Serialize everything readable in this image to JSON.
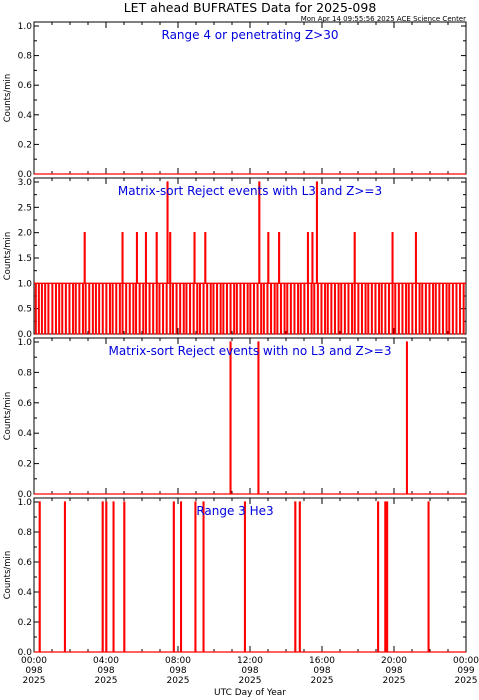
{
  "title": "LET ahead BUFRATES Data for 2025-098",
  "timestamp": "Mon Apr 14 09:55:56 2025 ACE Science Center",
  "xlabel": "UTC Day of Year",
  "colors": {
    "data": "#ff0000",
    "annotation": "#0000dd",
    "axes": "#000000"
  },
  "x_ticks": [
    {
      "time": "00:00",
      "day": "098",
      "year": "2025"
    },
    {
      "time": "04:00",
      "day": "098",
      "year": "2025"
    },
    {
      "time": "08:00",
      "day": "098",
      "year": "2025"
    },
    {
      "time": "12:00",
      "day": "098",
      "year": "2025"
    },
    {
      "time": "16:00",
      "day": "098",
      "year": "2025"
    },
    {
      "time": "20:00",
      "day": "098",
      "year": "2025"
    },
    {
      "time": "00:00",
      "day": "099",
      "year": "2025"
    }
  ],
  "chart_data": [
    {
      "type": "line",
      "annotation": "Range 4 or  penetrating Z>30",
      "ylabel": "Counts/min",
      "xlim": [
        0,
        24
      ],
      "ylim": [
        0,
        1
      ],
      "yticks": [
        "0.0",
        "0.2",
        "0.4",
        "0.6",
        "0.8",
        "1.0"
      ],
      "baseline": 0,
      "spikes": []
    },
    {
      "type": "line",
      "annotation": "Matrix-sort Reject events with L3 and Z>=3",
      "ylabel": "Counts/min",
      "xlim": [
        0,
        24
      ],
      "ylim": [
        0,
        3
      ],
      "yticks": [
        "0.0",
        "0.5",
        "1.0",
        "1.5",
        "2.0",
        "2.5",
        "3.0"
      ],
      "baseline": 1,
      "zero_dips": [
        0.08,
        0.25,
        0.42,
        0.6,
        0.78,
        1.0,
        1.2,
        1.38,
        1.55,
        1.75,
        1.95,
        2.15,
        2.3,
        2.5,
        2.7,
        2.85,
        3.05,
        3.25,
        3.42,
        3.6,
        3.8,
        4.0,
        4.2,
        4.35,
        4.55,
        4.75,
        4.9,
        5.1,
        5.3,
        5.5,
        5.65,
        5.85,
        6.05,
        6.2,
        6.4,
        6.6,
        6.8,
        6.95,
        7.15,
        7.35,
        7.55,
        7.7,
        7.9,
        8.1,
        8.3,
        8.45,
        8.65,
        8.85,
        9.05,
        9.2,
        9.4,
        9.6,
        9.8,
        9.95,
        10.15,
        10.35,
        10.5,
        10.7,
        10.9,
        11.1,
        11.25,
        11.45,
        11.65,
        11.85,
        12.0,
        12.2,
        12.4,
        12.6,
        12.75,
        12.95,
        13.15,
        13.35,
        13.5,
        13.7,
        13.9,
        14.05,
        14.25,
        14.45,
        14.65,
        14.8,
        15.0,
        15.2,
        15.4,
        15.55,
        15.75,
        15.95,
        16.15,
        16.3,
        16.5,
        16.7,
        16.9,
        17.05,
        17.25,
        17.45,
        17.65,
        17.8,
        18.0,
        18.2,
        18.4,
        18.55,
        18.75,
        18.95,
        19.15,
        19.3,
        19.5,
        19.7,
        19.9,
        20.05,
        20.25,
        20.45,
        20.65,
        20.8,
        21.0,
        21.2,
        21.4,
        21.55,
        21.75,
        21.95,
        22.15,
        22.3,
        22.5,
        22.7,
        22.9,
        23.05,
        23.25,
        23.45,
        23.65,
        23.85
      ],
      "spikes": [
        {
          "x": 2.8,
          "y": 2
        },
        {
          "x": 4.9,
          "y": 2
        },
        {
          "x": 5.7,
          "y": 2
        },
        {
          "x": 6.2,
          "y": 2
        },
        {
          "x": 6.8,
          "y": 2
        },
        {
          "x": 7.4,
          "y": 3
        },
        {
          "x": 7.55,
          "y": 2
        },
        {
          "x": 8.9,
          "y": 2
        },
        {
          "x": 9.5,
          "y": 2
        },
        {
          "x": 12.5,
          "y": 3
        },
        {
          "x": 13.0,
          "y": 2
        },
        {
          "x": 13.6,
          "y": 2
        },
        {
          "x": 15.2,
          "y": 2
        },
        {
          "x": 15.45,
          "y": 2
        },
        {
          "x": 15.7,
          "y": 3
        },
        {
          "x": 17.8,
          "y": 2
        },
        {
          "x": 19.9,
          "y": 2
        },
        {
          "x": 21.2,
          "y": 2
        }
      ]
    },
    {
      "type": "line",
      "annotation": "Matrix-sort Reject events with no L3 and Z>=3",
      "ylabel": "Counts/min",
      "xlim": [
        0,
        24
      ],
      "ylim": [
        0,
        1
      ],
      "yticks": [
        "0.0",
        "0.2",
        "0.4",
        "0.6",
        "0.8",
        "1.0"
      ],
      "baseline": 0,
      "spikes": [
        {
          "x": 10.9,
          "y": 1
        },
        {
          "x": 12.45,
          "y": 1
        },
        {
          "x": 20.7,
          "y": 1
        }
      ]
    },
    {
      "type": "line",
      "annotation": "Range 3 He3",
      "ylabel": "Counts/min",
      "xlim": [
        0,
        24
      ],
      "ylim": [
        0,
        1
      ],
      "yticks": [
        "0.0",
        "0.2",
        "0.4",
        "0.6",
        "0.8",
        "1.0"
      ],
      "baseline": 0,
      "spikes": [
        {
          "x": 0.3,
          "y": 1
        },
        {
          "x": 1.7,
          "y": 1
        },
        {
          "x": 3.8,
          "y": 1
        },
        {
          "x": 4.0,
          "y": 1
        },
        {
          "x": 4.4,
          "y": 1
        },
        {
          "x": 5.0,
          "y": 1
        },
        {
          "x": 7.75,
          "y": 1
        },
        {
          "x": 8.15,
          "y": 1
        },
        {
          "x": 8.95,
          "y": 1
        },
        {
          "x": 9.4,
          "y": 1
        },
        {
          "x": 11.7,
          "y": 1
        },
        {
          "x": 14.5,
          "y": 1
        },
        {
          "x": 14.75,
          "y": 1
        },
        {
          "x": 19.1,
          "y": 1
        },
        {
          "x": 19.5,
          "y": 1
        },
        {
          "x": 19.6,
          "y": 1
        },
        {
          "x": 21.9,
          "y": 1
        }
      ]
    }
  ]
}
